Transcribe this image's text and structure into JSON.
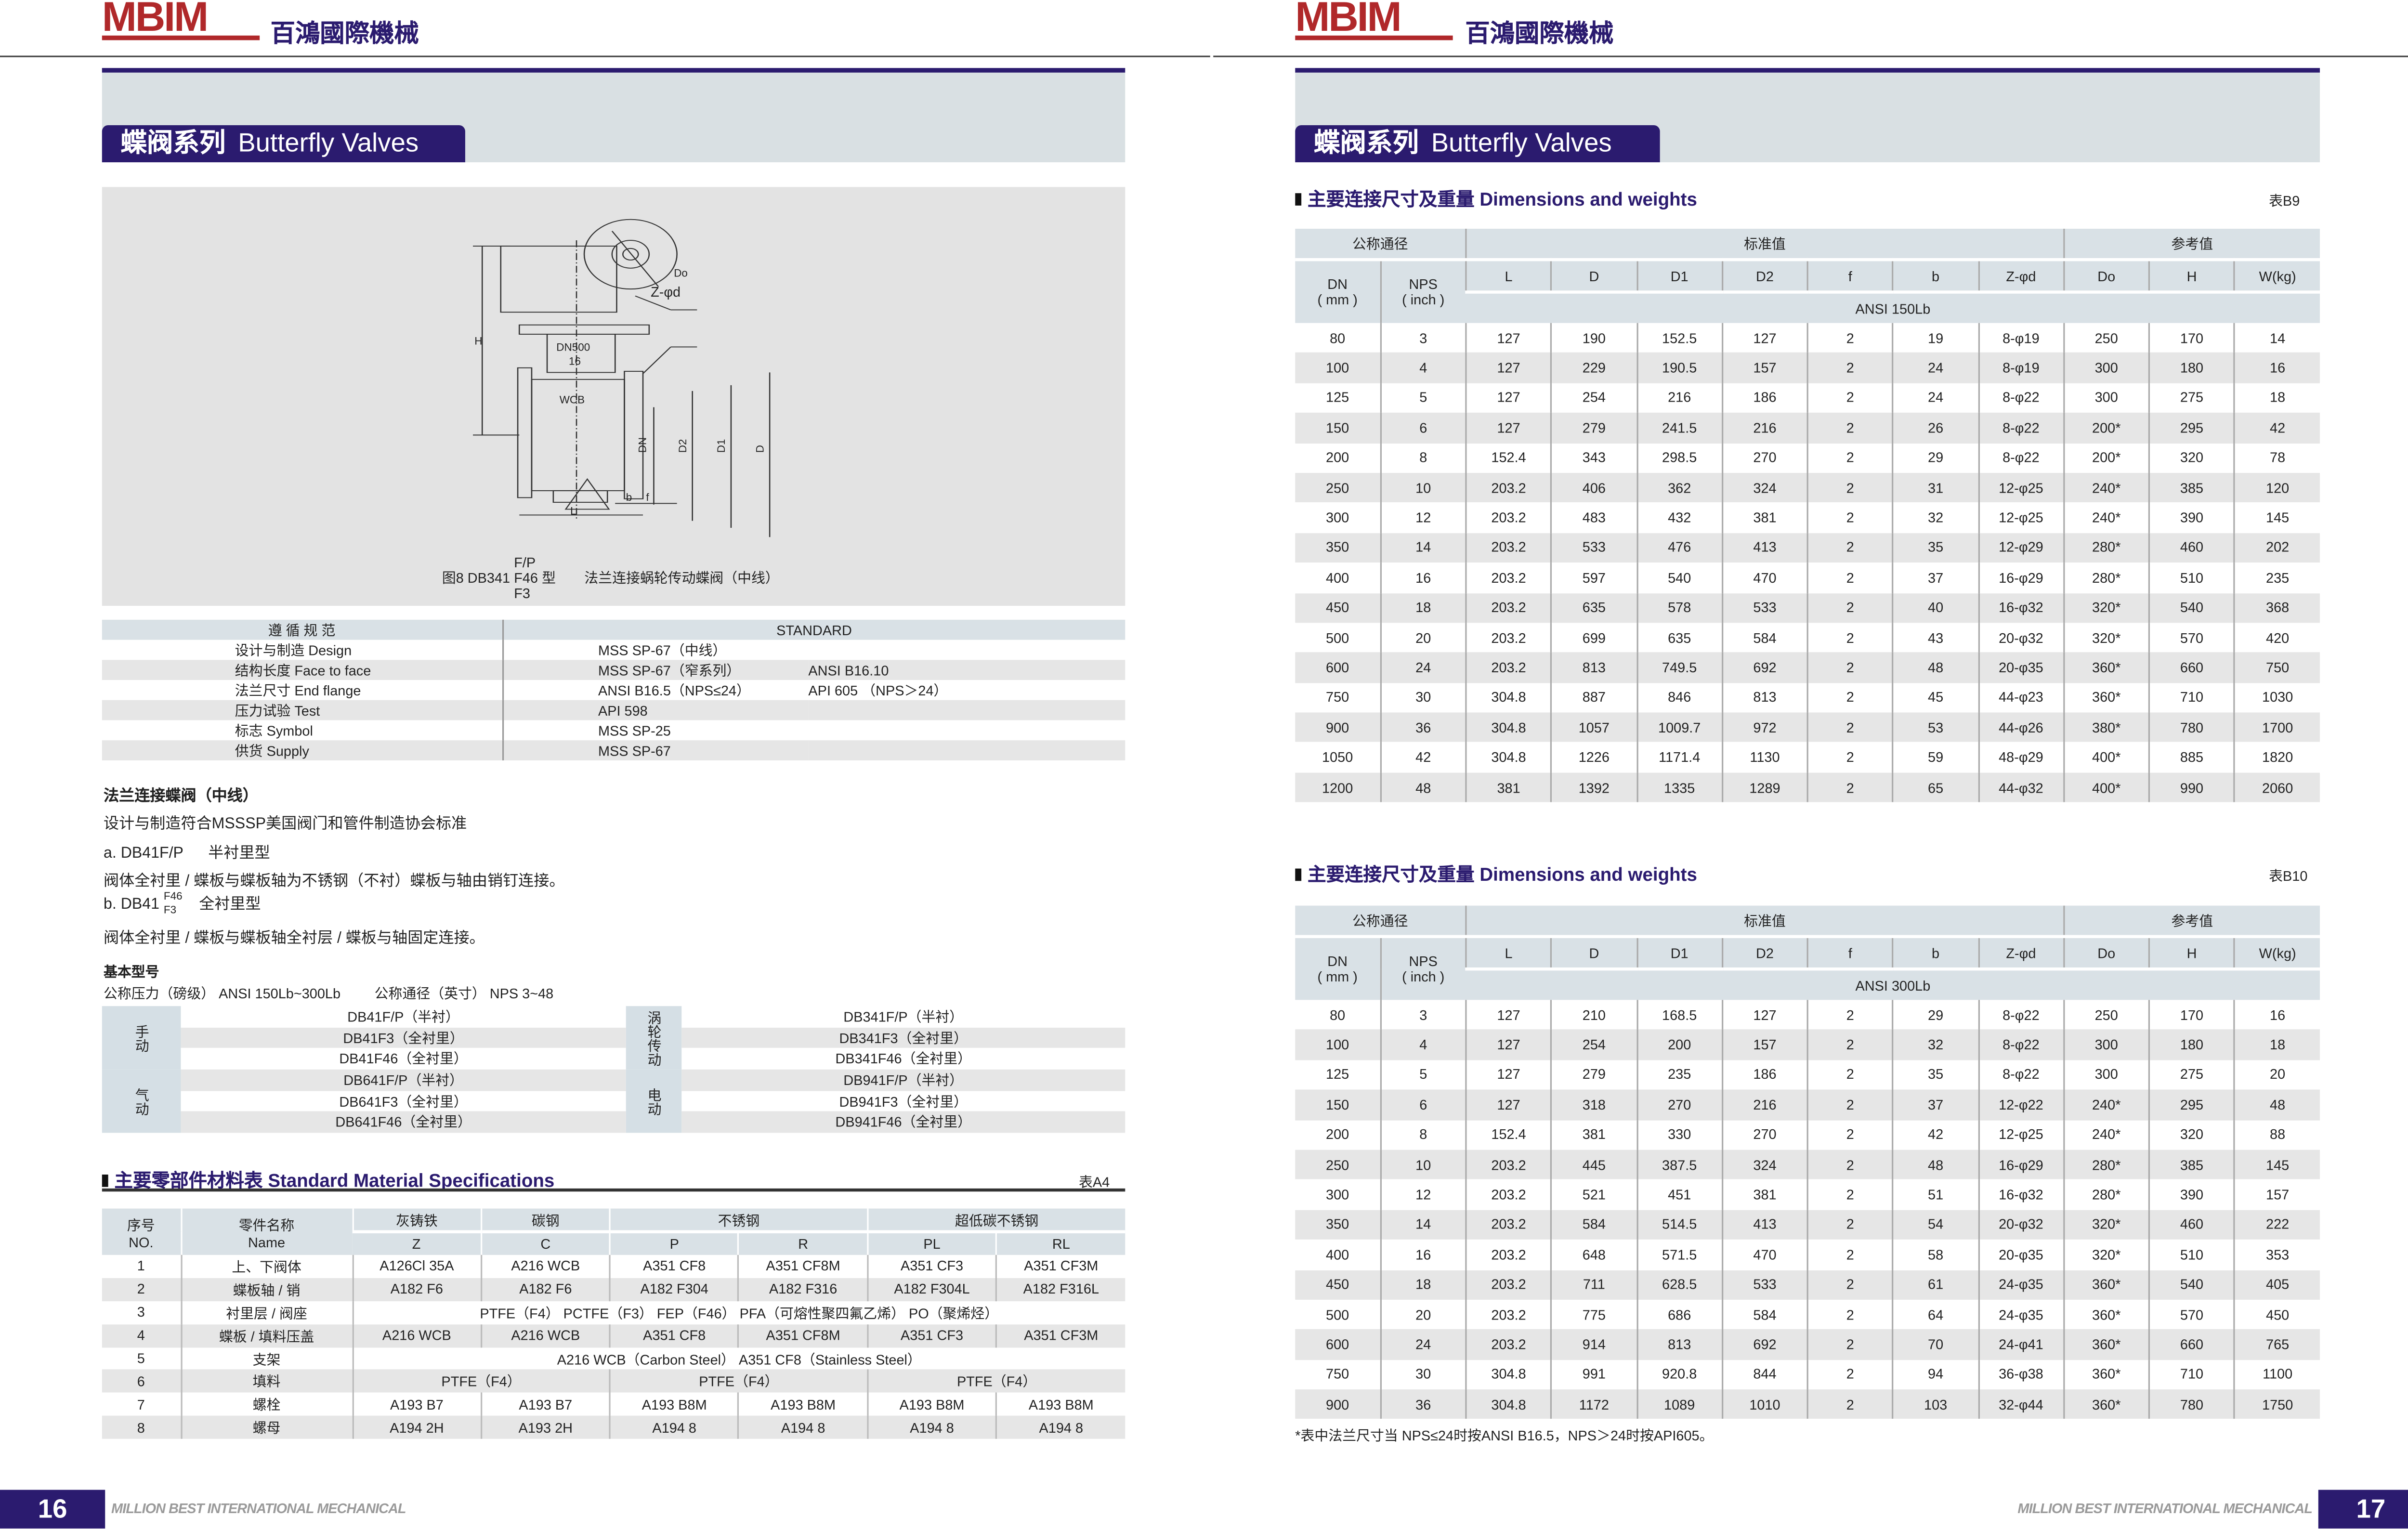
{
  "header": {
    "logo_text": "MBIM",
    "company_cn": "百鴻國際機械"
  },
  "colors": {
    "navy": "#2b1b6f",
    "logo_red": "#b0282a",
    "table_header": "#d9e1e6",
    "stripe": "#e6e6e6"
  },
  "left_page": {
    "section_title_cn": "蝶阀系列",
    "section_title_en": "Butterfly Valves",
    "figure": {
      "labels": {
        "H": "H",
        "Do": "Do",
        "Zd": "Z-φd",
        "DN": "DN",
        "D2": "D2",
        "D1": "D1",
        "D": "D",
        "L": "L",
        "b": "b",
        "f": "f",
        "marking1": "DN500",
        "marking2": "16",
        "material": "WCB"
      },
      "caption_prefix": "图8  DB341",
      "caption_sup": "F/P",
      "caption_mid": "F46",
      "caption_sub": "F3",
      "caption_type": "型",
      "caption_desc": "法兰连接蜗轮传动蝶阀（中线）"
    },
    "standards": {
      "header": [
        "遵 循 规 范",
        "STANDARD"
      ],
      "rows": [
        [
          "设计与制造 Design",
          "MSS SP-67（中线）",
          ""
        ],
        [
          "结构长度 Face to face",
          "MSS SP-67（窄系列）",
          "ANSI B16.10"
        ],
        [
          "法兰尺寸 End flange",
          "ANSI B16.5（NPS≤24）",
          "API 605 （NPS＞24）"
        ],
        [
          "压力试验 Test",
          "API 598",
          ""
        ],
        [
          "标志 Symbol",
          "MSS SP-25",
          ""
        ],
        [
          "供货 Supply",
          "MSS SP-67",
          ""
        ]
      ]
    },
    "description": {
      "title": "法兰连接蝶阀（中线）",
      "line1": "设计与制造符合MSSSP美国阀门和管件制造协会标准",
      "type_a": "a. DB41F/P",
      "type_a_desc": "半衬里型",
      "type_a_detail": "阀体全衬里 / 蝶板与蝶板轴为不锈钢（不衬）蝶板与轴由销钉连接。",
      "type_b": "b. DB41",
      "type_b_sup": "F46",
      "type_b_sub": "F3",
      "type_b_desc": "全衬里型",
      "type_b_detail": "阀体全衬里 / 蝶板与蝶板轴全衬层 / 蝶板与轴固定连接。"
    },
    "models": {
      "title": "基本型号",
      "pressure": "公称压力（磅级） ANSI 150Lb~300Lb",
      "size": "公称通径（英寸） NPS 3~48",
      "groups": [
        {
          "label": "手动",
          "items": [
            "DB41F/P（半衬）",
            "DB41F3（全衬里）",
            "DB41F46（全衬里）"
          ]
        },
        {
          "label": "涡轮传动",
          "items": [
            "DB341F/P（半衬）",
            "DB341F3（全衬里）",
            "DB341F46（全衬里）"
          ]
        },
        {
          "label": "气动",
          "items": [
            "DB641F/P（半衬）",
            "DB641F3（全衬里）",
            "DB641F46（全衬里）"
          ]
        },
        {
          "label": "电动",
          "items": [
            "DB941F/P（半衬）",
            "DB941F3（全衬里）",
            "DB941F46（全衬里）"
          ]
        }
      ]
    },
    "materials": {
      "title_cn": "主要零部件材料表",
      "title_en": "Standard Material Specifications",
      "table_id": "表A4",
      "header": {
        "no_cn": "序号",
        "no_en": "NO.",
        "name_cn": "零件名称",
        "name_en": "Name",
        "groups": [
          "灰铸铁",
          "碳钢",
          "不锈钢",
          "超低碳不锈钢"
        ],
        "codes": [
          "Z",
          "C",
          "P",
          "R",
          "PL",
          "RL"
        ]
      },
      "rows": [
        {
          "no": "1",
          "name": "上、下阀体",
          "cells": [
            "A126Cl 35A",
            "A216 WCB",
            "A351 CF8",
            "A351 CF8M",
            "A351 CF3",
            "A351 CF3M"
          ]
        },
        {
          "no": "2",
          "name": "蝶板轴 / 销",
          "cells": [
            "A182 F6",
            "A182 F6",
            "A182 F304",
            "A182 F316",
            "A182 F304L",
            "A182 F316L"
          ]
        },
        {
          "no": "3",
          "name": "衬里层 / 阀座",
          "span": "PTFE（F4） PCTFE（F3） FEP（F46） PFA（可熔性聚四氟乙烯） PO（聚烯烃）"
        },
        {
          "no": "4",
          "name": "蝶板 / 填料压盖",
          "cells": [
            "A216 WCB",
            "A216 WCB",
            "A351 CF8",
            "A351 CF8M",
            "A351 CF3",
            "A351 CF3M"
          ]
        },
        {
          "no": "5",
          "name": "支架",
          "span": "A216 WCB（Carbon Steel）   A351 CF8（Stainless Steel）"
        },
        {
          "no": "6",
          "name": "填料",
          "pairs": [
            "PTFE（F4）",
            "PTFE（F4）",
            "PTFE（F4）"
          ]
        },
        {
          "no": "7",
          "name": "螺栓",
          "cells": [
            "A193 B7",
            "A193 B7",
            "A193 B8M",
            "A193 B8M",
            "A193 B8M",
            "A193 B8M"
          ]
        },
        {
          "no": "8",
          "name": "螺母",
          "cells": [
            "A194 2H",
            "A193 2H",
            "A194 8",
            "A194 8",
            "A194 8",
            "A194 8"
          ]
        }
      ]
    },
    "footer": {
      "page": "16",
      "company_en": "MILLION BEST INTERNATIONAL MECHANICAL"
    }
  },
  "right_page": {
    "section_title_cn": "蝶阀系列",
    "section_title_en": "Butterfly Valves",
    "dim_header": {
      "group_nominal": "公称通径",
      "group_standard": "标准值",
      "group_reference": "参考值",
      "dn": "DN",
      "dn_unit": "( mm )",
      "nps": "NPS",
      "nps_unit": "( inch )",
      "cols": [
        "L",
        "D",
        "D1",
        "D2",
        "f",
        "b",
        "Z-φd",
        "Do",
        "H",
        "W(kg)"
      ]
    },
    "tables": [
      {
        "title_cn": "主要连接尺寸及重量",
        "title_en": "Dimensions and weights",
        "table_id": "表B9",
        "class": "ANSI 150Lb",
        "rows": [
          [
            "80",
            "3",
            "127",
            "190",
            "152.5",
            "127",
            "2",
            "19",
            "8-φ19",
            "250",
            "170",
            "14"
          ],
          [
            "100",
            "4",
            "127",
            "229",
            "190.5",
            "157",
            "2",
            "24",
            "8-φ19",
            "300",
            "180",
            "16"
          ],
          [
            "125",
            "5",
            "127",
            "254",
            "216",
            "186",
            "2",
            "24",
            "8-φ22",
            "300",
            "275",
            "18"
          ],
          [
            "150",
            "6",
            "127",
            "279",
            "241.5",
            "216",
            "2",
            "26",
            "8-φ22",
            "200*",
            "295",
            "42"
          ],
          [
            "200",
            "8",
            "152.4",
            "343",
            "298.5",
            "270",
            "2",
            "29",
            "8-φ22",
            "200*",
            "320",
            "78"
          ],
          [
            "250",
            "10",
            "203.2",
            "406",
            "362",
            "324",
            "2",
            "31",
            "12-φ25",
            "240*",
            "385",
            "120"
          ],
          [
            "300",
            "12",
            "203.2",
            "483",
            "432",
            "381",
            "2",
            "32",
            "12-φ25",
            "240*",
            "390",
            "145"
          ],
          [
            "350",
            "14",
            "203.2",
            "533",
            "476",
            "413",
            "2",
            "35",
            "12-φ29",
            "280*",
            "460",
            "202"
          ],
          [
            "400",
            "16",
            "203.2",
            "597",
            "540",
            "470",
            "2",
            "37",
            "16-φ29",
            "280*",
            "510",
            "235"
          ],
          [
            "450",
            "18",
            "203.2",
            "635",
            "578",
            "533",
            "2",
            "40",
            "16-φ32",
            "320*",
            "540",
            "368"
          ],
          [
            "500",
            "20",
            "203.2",
            "699",
            "635",
            "584",
            "2",
            "43",
            "20-φ32",
            "320*",
            "570",
            "420"
          ],
          [
            "600",
            "24",
            "203.2",
            "813",
            "749.5",
            "692",
            "2",
            "48",
            "20-φ35",
            "360*",
            "660",
            "750"
          ],
          [
            "750",
            "30",
            "304.8",
            "887",
            "846",
            "813",
            "2",
            "45",
            "44-φ23",
            "360*",
            "710",
            "1030"
          ],
          [
            "900",
            "36",
            "304.8",
            "1057",
            "1009.7",
            "972",
            "2",
            "53",
            "44-φ26",
            "380*",
            "780",
            "1700"
          ],
          [
            "1050",
            "42",
            "304.8",
            "1226",
            "1171.4",
            "1130",
            "2",
            "59",
            "48-φ29",
            "400*",
            "885",
            "1820"
          ],
          [
            "1200",
            "48",
            "381",
            "1392",
            "1335",
            "1289",
            "2",
            "65",
            "44-φ32",
            "400*",
            "990",
            "2060"
          ]
        ]
      },
      {
        "title_cn": "主要连接尺寸及重量",
        "title_en": "Dimensions and weights",
        "table_id": "表B10",
        "class": "ANSI 300Lb",
        "rows": [
          [
            "80",
            "3",
            "127",
            "210",
            "168.5",
            "127",
            "2",
            "29",
            "8-φ22",
            "250",
            "170",
            "16"
          ],
          [
            "100",
            "4",
            "127",
            "254",
            "200",
            "157",
            "2",
            "32",
            "8-φ22",
            "300",
            "180",
            "18"
          ],
          [
            "125",
            "5",
            "127",
            "279",
            "235",
            "186",
            "2",
            "35",
            "8-φ22",
            "300",
            "275",
            "20"
          ],
          [
            "150",
            "6",
            "127",
            "318",
            "270",
            "216",
            "2",
            "37",
            "12-φ22",
            "240*",
            "295",
            "48"
          ],
          [
            "200",
            "8",
            "152.4",
            "381",
            "330",
            "270",
            "2",
            "42",
            "12-φ25",
            "240*",
            "320",
            "88"
          ],
          [
            "250",
            "10",
            "203.2",
            "445",
            "387.5",
            "324",
            "2",
            "48",
            "16-φ29",
            "280*",
            "385",
            "145"
          ],
          [
            "300",
            "12",
            "203.2",
            "521",
            "451",
            "381",
            "2",
            "51",
            "16-φ32",
            "280*",
            "390",
            "157"
          ],
          [
            "350",
            "14",
            "203.2",
            "584",
            "514.5",
            "413",
            "2",
            "54",
            "20-φ32",
            "320*",
            "460",
            "222"
          ],
          [
            "400",
            "16",
            "203.2",
            "648",
            "571.5",
            "470",
            "2",
            "58",
            "20-φ35",
            "320*",
            "510",
            "353"
          ],
          [
            "450",
            "18",
            "203.2",
            "711",
            "628.5",
            "533",
            "2",
            "61",
            "24-φ35",
            "360*",
            "540",
            "405"
          ],
          [
            "500",
            "20",
            "203.2",
            "775",
            "686",
            "584",
            "2",
            "64",
            "24-φ35",
            "360*",
            "570",
            "450"
          ],
          [
            "600",
            "24",
            "203.2",
            "914",
            "813",
            "692",
            "2",
            "70",
            "24-φ41",
            "360*",
            "660",
            "765"
          ],
          [
            "750",
            "30",
            "304.8",
            "991",
            "920.8",
            "844",
            "2",
            "94",
            "36-φ38",
            "360*",
            "710",
            "1100"
          ],
          [
            "900",
            "36",
            "304.8",
            "1172",
            "1089",
            "1010",
            "2",
            "103",
            "32-φ44",
            "360*",
            "780",
            "1750"
          ]
        ]
      }
    ],
    "note": "*表中法兰尺寸当 NPS≤24时按ANSI B16.5，NPS＞24时按API605。",
    "footer": {
      "page": "17",
      "company_en": "MILLION BEST INTERNATIONAL MECHANICAL"
    }
  }
}
